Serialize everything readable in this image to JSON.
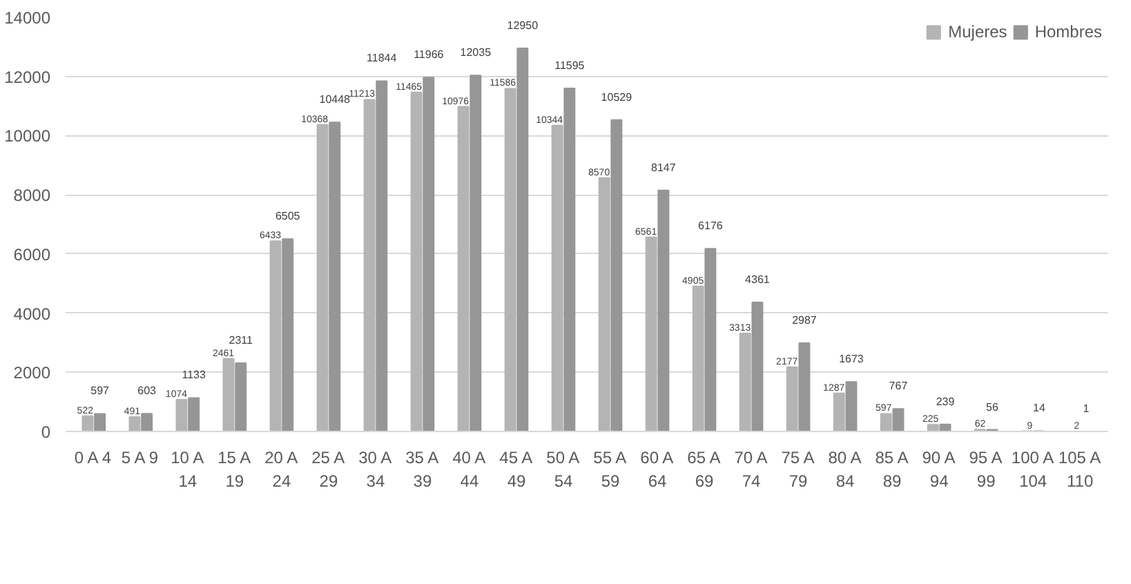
{
  "chart_data": {
    "type": "bar",
    "categories": [
      "0 A 4",
      "5 A 9",
      "10 A 14",
      "15 A 19",
      "20 A 24",
      "25 A 29",
      "30 A 34",
      "35 A 39",
      "40 A 44",
      "45 A 49",
      "50 A 54",
      "55 A 59",
      "60 A 64",
      "65 A 69",
      "70 A 74",
      "75 A 79",
      "80 A 84",
      "85 A 89",
      "90 A 94",
      "95 A 99",
      "100 A 104",
      "105 A 110"
    ],
    "series": [
      {
        "name": "Mujeres",
        "color": "#b4b4b4",
        "values": [
          522,
          491,
          1074,
          2461,
          6433,
          10368,
          11213,
          11465,
          10976,
          11586,
          10344,
          8570,
          6561,
          4905,
          3313,
          2177,
          1287,
          597,
          225,
          62,
          9,
          2
        ]
      },
      {
        "name": "Hombres",
        "color": "#969696",
        "values": [
          597,
          603,
          1133,
          2311,
          6505,
          10448,
          11844,
          11966,
          12035,
          12950,
          11595,
          10529,
          8147,
          6176,
          4361,
          2987,
          1673,
          767,
          239,
          56,
          14,
          1
        ]
      }
    ],
    "ylim": [
      0,
      14000
    ],
    "yticks": [
      0,
      2000,
      4000,
      6000,
      8000,
      10000,
      12000,
      14000
    ],
    "grid": "y",
    "legend": "top right",
    "data_labels": true
  }
}
